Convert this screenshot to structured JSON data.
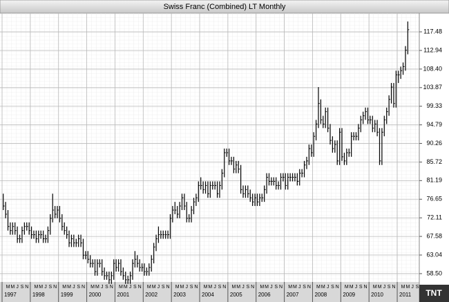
{
  "chart_data": {
    "type": "ohlc",
    "title": "Swiss Franc (Combined) LT Monthly",
    "logo": "TNT",
    "years": [
      "1997",
      "1998",
      "1999",
      "2000",
      "2001",
      "2002",
      "2003",
      "2004",
      "2005",
      "2006",
      "2007",
      "2008",
      "2009",
      "2010",
      "2011"
    ],
    "month_labels": [
      "M",
      "M",
      "J",
      "S",
      "N"
    ],
    "color": "#000000",
    "grid": true,
    "ylim": [
      56.47,
      122.04
    ],
    "yticks": [
      {
        "value": 58.5,
        "label": "58.50"
      },
      63.04,
      67.58,
      72.11,
      76.65,
      81.19,
      85.72,
      90.26,
      94.79,
      99.33,
      103.87,
      {
        "value": 108.4,
        "label": "108.40"
      },
      112.94,
      117.48
    ],
    "high": [
      78,
      76,
      74,
      71,
      71,
      71,
      70,
      68,
      70,
      71,
      71,
      71,
      70,
      69,
      69,
      69,
      69,
      69,
      68,
      70,
      73,
      78,
      75,
      75,
      75,
      73,
      71,
      70,
      69,
      68,
      68,
      67,
      68,
      68,
      67,
      64,
      64,
      63,
      62,
      62,
      62,
      62,
      62,
      60,
      59,
      59,
      59,
      62,
      62,
      62,
      62,
      60,
      59,
      58,
      59,
      62,
      64,
      63,
      62,
      61,
      61,
      60,
      61,
      63,
      66,
      68,
      70,
      69,
      69,
      69,
      69,
      73,
      75,
      76,
      75,
      76,
      78,
      78,
      76,
      73,
      75,
      77,
      78,
      81,
      82,
      81,
      81,
      81,
      81,
      81,
      81,
      81,
      81,
      84,
      89,
      89,
      89,
      87,
      87,
      86,
      86,
      85,
      80,
      80,
      80,
      79,
      78,
      78,
      78,
      78,
      78,
      80,
      83,
      83,
      82,
      82,
      82,
      81,
      83,
      83,
      83,
      83,
      83,
      83,
      83,
      83,
      84,
      84,
      86,
      87,
      90,
      90,
      93,
      96,
      104,
      101,
      97,
      99,
      99,
      95,
      92,
      91,
      91,
      94,
      94,
      88,
      89,
      89,
      93,
      93,
      93,
      95,
      97,
      98,
      99,
      99,
      97,
      97,
      96,
      96,
      94,
      94,
      97,
      99,
      102,
      105,
      105,
      108,
      108,
      109,
      110,
      114,
      120
    ],
    "low": [
      74,
      72,
      69,
      68,
      68,
      68,
      66,
      66,
      66,
      68,
      69,
      68,
      67,
      67,
      66,
      66,
      67,
      66,
      66,
      66,
      68,
      71,
      72,
      72,
      71,
      69,
      68,
      67,
      65,
      65,
      65,
      65,
      65,
      65,
      62,
      62,
      61,
      60,
      60,
      58,
      58,
      60,
      58,
      57,
      57,
      56,
      56,
      57,
      59,
      59,
      58,
      57,
      56,
      56,
      56,
      57,
      60,
      60,
      59,
      59,
      58,
      58,
      58,
      59,
      61,
      64,
      66,
      67,
      67,
      67,
      67,
      67,
      71,
      73,
      72,
      72,
      74,
      74,
      71,
      71,
      71,
      73,
      75,
      76,
      79,
      78,
      78,
      77,
      77,
      79,
      79,
      77,
      77,
      79,
      82,
      87,
      85,
      85,
      83,
      83,
      83,
      78,
      77,
      77,
      77,
      76,
      75,
      75,
      75,
      75,
      76,
      76,
      78,
      80,
      80,
      80,
      79,
      79,
      79,
      81,
      79,
      79,
      81,
      81,
      81,
      80,
      80,
      82,
      82,
      84,
      85,
      87,
      87,
      91,
      94,
      95,
      94,
      94,
      93,
      90,
      88,
      88,
      85,
      85,
      86,
      85,
      85,
      87,
      87,
      91,
      91,
      91,
      93,
      95,
      96,
      95,
      95,
      93,
      93,
      92,
      85,
      85,
      92,
      95,
      97,
      100,
      99,
      99,
      105,
      106,
      107,
      108,
      112
    ],
    "close": [
      75,
      73,
      70,
      69,
      70,
      69,
      67,
      67,
      69,
      70,
      70,
      69,
      68,
      68,
      67,
      68,
      68,
      67,
      67,
      69,
      72,
      74,
      73,
      74,
      72,
      70,
      69,
      68,
      66,
      67,
      66,
      66,
      67,
      66,
      63,
      63,
      62,
      61,
      61,
      59,
      61,
      61,
      59,
      58,
      58,
      57,
      58,
      61,
      60,
      61,
      59,
      58,
      57,
      57,
      58,
      61,
      62,
      61,
      60,
      60,
      59,
      59,
      60,
      62,
      65,
      67,
      68,
      68,
      68,
      68,
      68,
      72,
      74,
      74,
      73,
      75,
      77,
      75,
      72,
      72,
      74,
      76,
      77,
      80,
      80,
      79,
      80,
      78,
      80,
      80,
      80,
      78,
      80,
      83,
      88,
      88,
      86,
      86,
      84,
      85,
      84,
      79,
      78,
      79,
      78,
      77,
      76,
      77,
      76,
      77,
      77,
      79,
      82,
      81,
      81,
      81,
      80,
      80,
      82,
      82,
      80,
      82,
      82,
      82,
      82,
      81,
      83,
      83,
      85,
      86,
      89,
      88,
      92,
      95,
      100,
      96,
      95,
      98,
      94,
      91,
      89,
      90,
      86,
      93,
      87,
      86,
      88,
      88,
      92,
      92,
      92,
      94,
      96,
      97,
      98,
      96,
      96,
      94,
      95,
      93,
      86,
      93,
      96,
      98,
      101,
      104,
      100,
      107,
      107,
      108,
      109,
      113,
      118
    ]
  }
}
